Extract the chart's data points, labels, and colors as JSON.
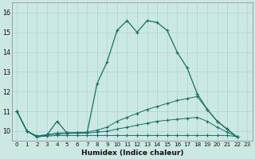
{
  "xlabel": "Humidex (Indice chaleur)",
  "xlim": [
    -0.5,
    23.5
  ],
  "ylim": [
    9.5,
    16.5
  ],
  "yticks": [
    10,
    11,
    12,
    13,
    14,
    15,
    16
  ],
  "xticks": [
    0,
    1,
    2,
    3,
    4,
    5,
    6,
    7,
    8,
    9,
    10,
    11,
    12,
    13,
    14,
    15,
    16,
    17,
    18,
    19,
    20,
    21,
    22,
    23
  ],
  "bg_color": "#cce8e4",
  "line_color": "#1a6e62",
  "grid_color": "#aad4ce",
  "lines": [
    {
      "x": [
        0,
        1,
        2,
        3,
        4,
        5,
        6,
        7,
        8,
        9,
        10,
        11,
        12,
        13,
        14,
        15,
        16,
        17,
        18,
        19,
        20,
        21,
        22
      ],
      "y": [
        11.0,
        10.0,
        9.7,
        9.8,
        10.5,
        9.9,
        9.9,
        9.9,
        12.4,
        13.5,
        15.1,
        15.6,
        15.0,
        15.6,
        15.5,
        15.1,
        14.0,
        13.2,
        11.9,
        11.1,
        10.5,
        10.1,
        9.7
      ]
    },
    {
      "x": [
        0,
        1,
        2,
        3,
        4,
        5,
        6,
        7,
        8,
        9,
        10,
        11,
        12,
        13,
        14,
        15,
        16,
        17,
        18,
        19,
        20,
        21,
        22
      ],
      "y": [
        11.0,
        10.0,
        9.75,
        9.82,
        9.9,
        9.92,
        9.93,
        9.95,
        10.05,
        10.2,
        10.5,
        10.7,
        10.9,
        11.1,
        11.25,
        11.4,
        11.55,
        11.65,
        11.75,
        11.1,
        10.5,
        10.1,
        9.7
      ]
    },
    {
      "x": [
        0,
        1,
        2,
        3,
        4,
        5,
        6,
        7,
        8,
        9,
        10,
        11,
        12,
        13,
        14,
        15,
        16,
        17,
        18,
        19,
        20,
        21,
        22
      ],
      "y": [
        11.0,
        10.0,
        9.75,
        9.82,
        9.85,
        9.88,
        9.9,
        9.9,
        9.95,
        10.0,
        10.1,
        10.2,
        10.3,
        10.4,
        10.5,
        10.55,
        10.6,
        10.65,
        10.7,
        10.5,
        10.2,
        9.95,
        9.7
      ]
    },
    {
      "x": [
        0,
        1,
        2,
        3,
        4,
        5,
        6,
        7,
        8,
        9,
        10,
        11,
        12,
        13,
        14,
        15,
        16,
        17,
        18,
        19,
        20,
        21,
        22
      ],
      "y": [
        11.0,
        10.0,
        9.72,
        9.75,
        9.78,
        9.78,
        9.78,
        9.78,
        9.78,
        9.78,
        9.78,
        9.78,
        9.78,
        9.78,
        9.78,
        9.78,
        9.78,
        9.78,
        9.78,
        9.78,
        9.78,
        9.78,
        9.72
      ]
    }
  ]
}
